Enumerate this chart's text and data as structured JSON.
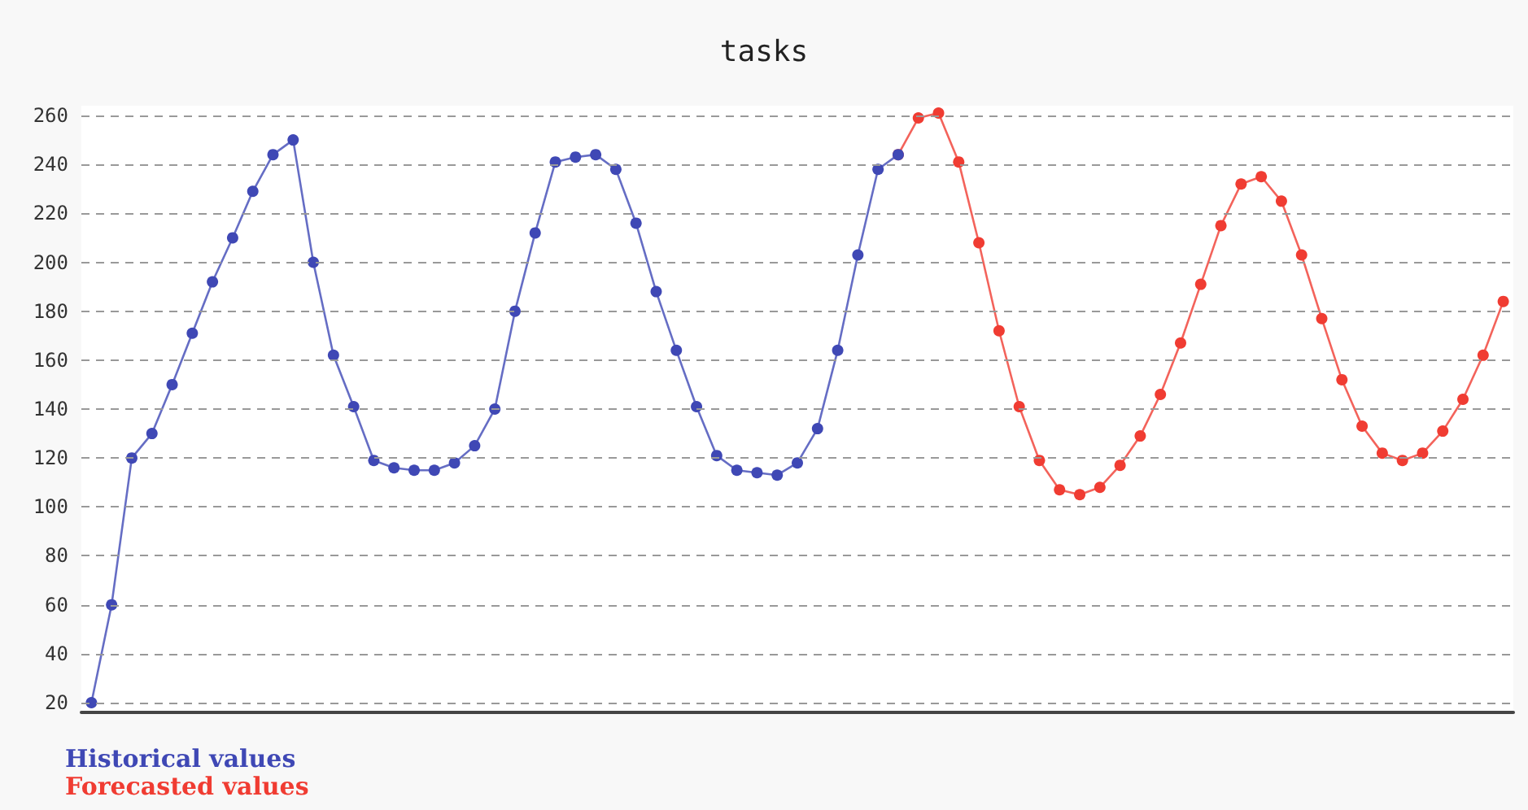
{
  "chart_data": {
    "type": "line",
    "title": "tasks",
    "categories": [
      null,
      null,
      null,
      null,
      null,
      null,
      null,
      null,
      null,
      null,
      null,
      null,
      null,
      null,
      null,
      null,
      null,
      null,
      null,
      null,
      null,
      null,
      null,
      null,
      null,
      null,
      null,
      null,
      null,
      null,
      null,
      null,
      null,
      null,
      null,
      null,
      null,
      null,
      null,
      null,
      null,
      null,
      null,
      null,
      null,
      null,
      null,
      null,
      null,
      null,
      null,
      null,
      null,
      null,
      null,
      null,
      null,
      null,
      null,
      null,
      null,
      null,
      null,
      null,
      null,
      null,
      null,
      null,
      null,
      null,
      null
    ],
    "series": [
      {
        "name": "Forecasted values",
        "color": "#f03c32",
        "values": [
          null,
          null,
          null,
          null,
          null,
          null,
          null,
          null,
          null,
          null,
          null,
          null,
          null,
          null,
          null,
          null,
          null,
          null,
          null,
          null,
          null,
          null,
          null,
          null,
          null,
          null,
          null,
          null,
          null,
          null,
          null,
          null,
          null,
          null,
          null,
          null,
          null,
          null,
          null,
          null,
          244,
          259,
          261,
          241,
          208,
          172,
          141,
          119,
          107,
          105,
          108,
          117,
          129,
          146,
          167,
          191,
          215,
          232,
          235,
          225,
          203,
          177,
          152,
          133,
          122,
          119,
          122,
          131,
          144,
          162,
          184
        ]
      },
      {
        "name": "Historical values",
        "color": "#3f48b5",
        "values": [
          20,
          60,
          120,
          130,
          150,
          171,
          192,
          210,
          229,
          244,
          250,
          200,
          162,
          141,
          119,
          116,
          115,
          115,
          118,
          125,
          140,
          180,
          212,
          241,
          243,
          244,
          238,
          216,
          188,
          164,
          141,
          121,
          115,
          114,
          113,
          118,
          132,
          164,
          203,
          238,
          244,
          null,
          null,
          null,
          null,
          null,
          null,
          null,
          null,
          null,
          null,
          null,
          null,
          null,
          null,
          null,
          null,
          null,
          null,
          null,
          null,
          null,
          null,
          null,
          null,
          null,
          null,
          null,
          null,
          null,
          null
        ]
      }
    ],
    "ylim": [
      16,
      264
    ],
    "yticks": [
      20,
      40,
      60,
      80,
      100,
      120,
      140,
      160,
      180,
      200,
      220,
      240,
      260
    ],
    "grid": "y",
    "legend": "bottom left",
    "marker": "circle",
    "line_style": "solid",
    "tick_labels": "y"
  }
}
